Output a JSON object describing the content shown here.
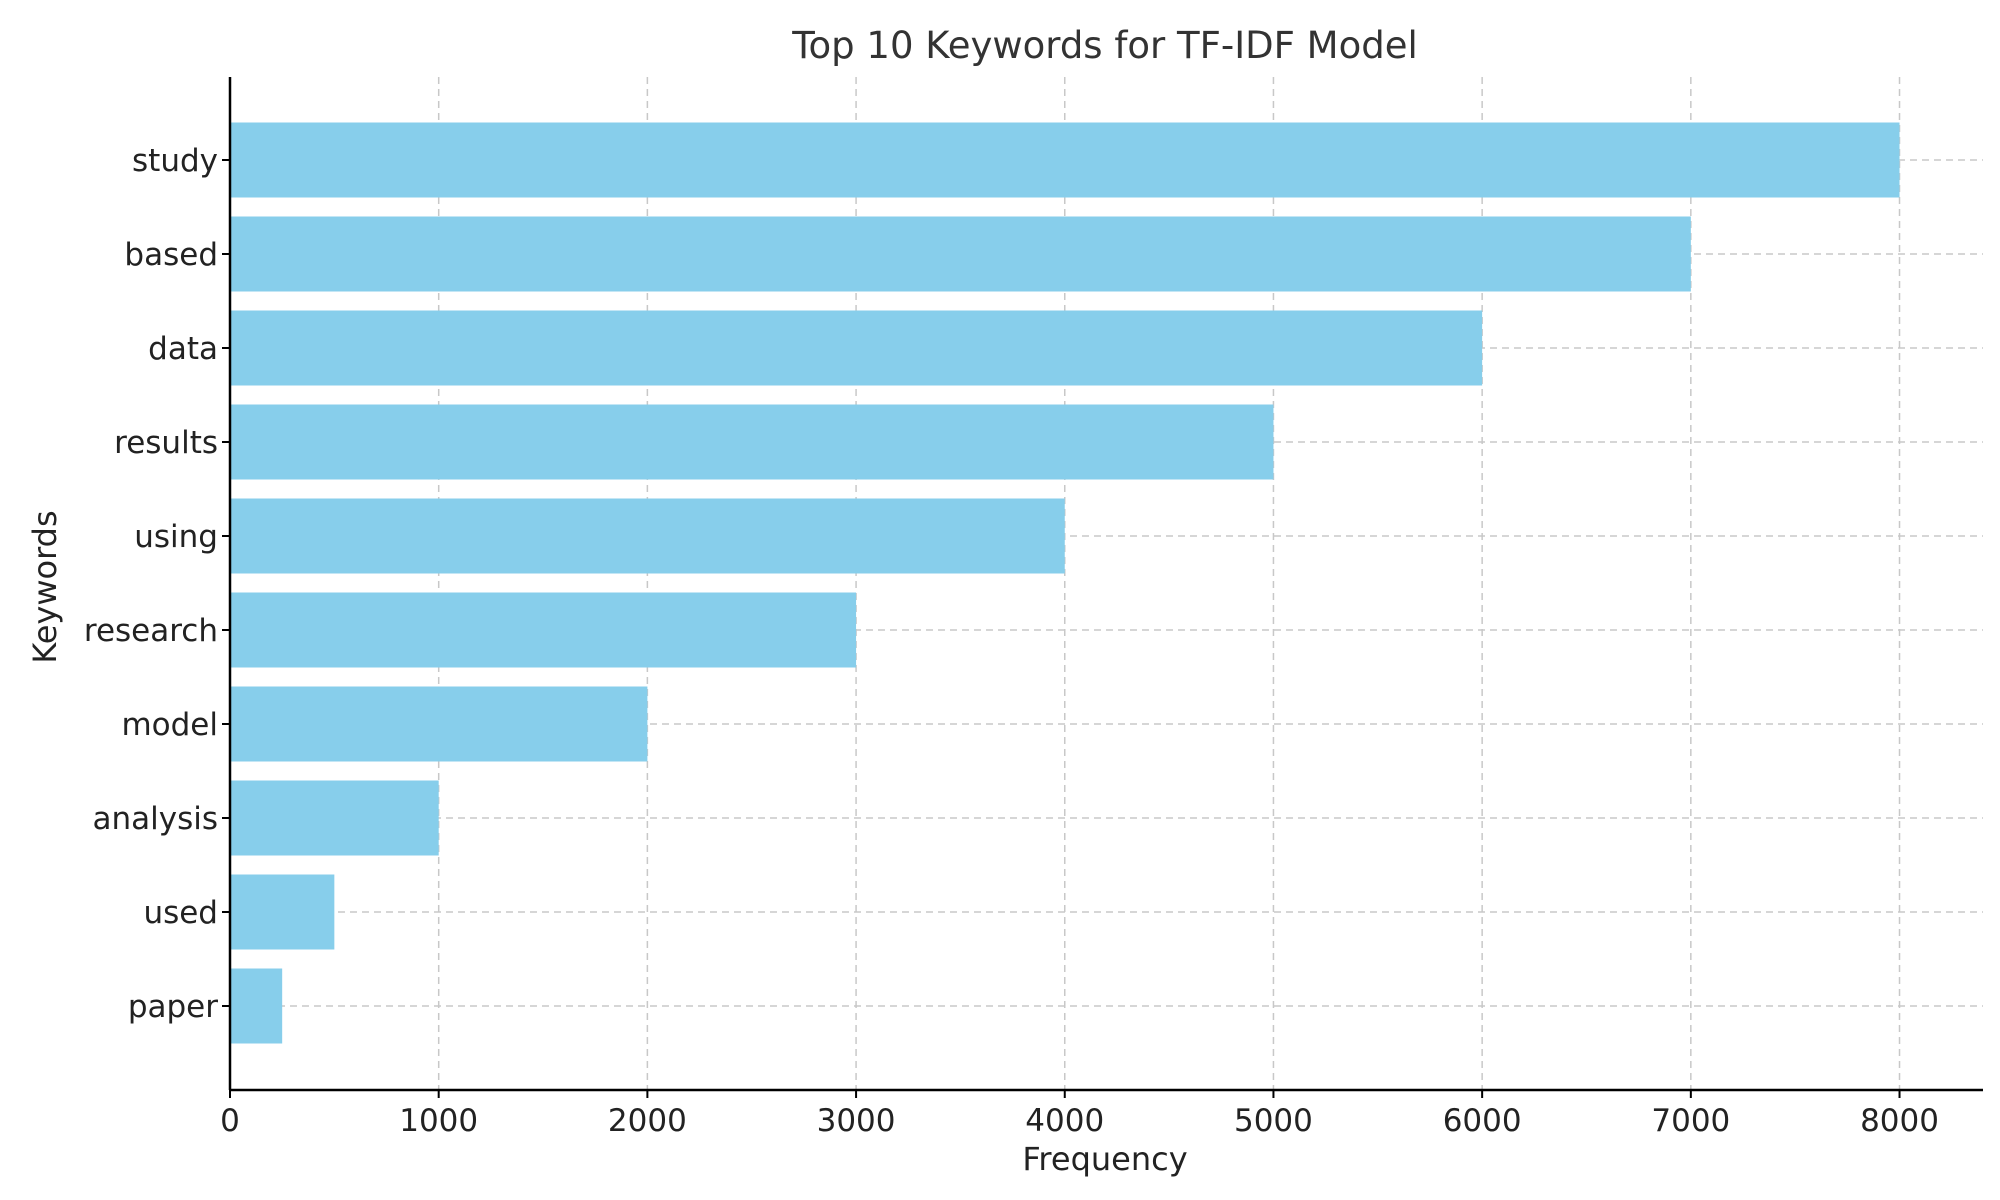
{
  "chart_data": {
    "type": "bar",
    "orientation": "horizontal",
    "title": "Top 10 Keywords for TF-IDF Model",
    "xlabel": "Frequency",
    "ylabel": "Keywords",
    "categories": [
      "study",
      "based",
      "data",
      "results",
      "using",
      "research",
      "model",
      "analysis",
      "used",
      "paper"
    ],
    "values": [
      8000,
      7000,
      6000,
      5000,
      4000,
      3000,
      2000,
      1000,
      500,
      250
    ],
    "x_ticks": [
      0,
      1000,
      2000,
      3000,
      4000,
      5000,
      6000,
      7000,
      8000
    ],
    "xlim": [
      0,
      8400
    ],
    "grid": true,
    "bar_color": "#87CEEB"
  }
}
